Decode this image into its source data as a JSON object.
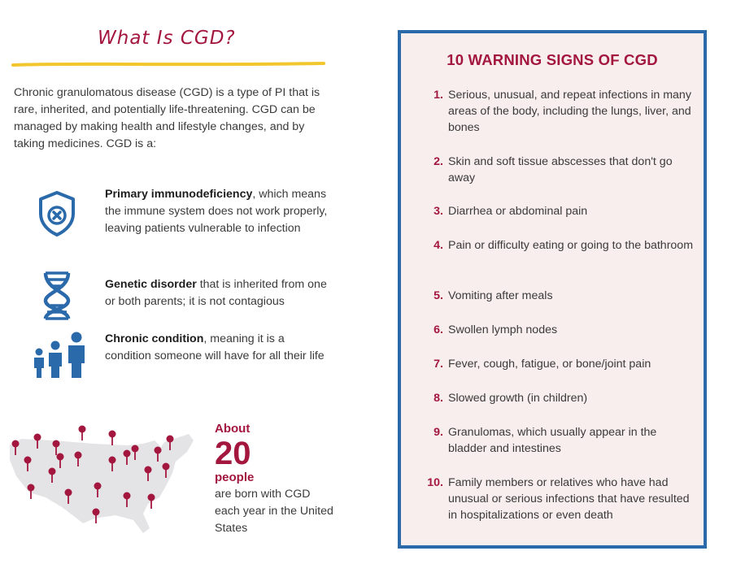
{
  "left": {
    "title": "What Is CGD?",
    "intro": "Chronic granulomatous disease (CGD) is a type of PI that is rare, inherited, and potentially life-threatening. CGD can be managed by making health and lifestyle changes, and by taking medicines. CGD is a:",
    "facts": [
      {
        "bold": "Primary immunodeficiency",
        "rest": ", which means the immune system does not work properly, leaving patients vulnerable to infection",
        "icon": "shield-x-icon"
      },
      {
        "bold": "Genetic disorder",
        "rest": " that is inherited from one or both parents; it is not contagious",
        "icon": "dna-icon"
      },
      {
        "bold": "Chronic condition",
        "rest": ", meaning it is a condition someone will have for all their life",
        "icon": "family-icon"
      }
    ],
    "stat": {
      "about": "About",
      "number": "20",
      "people": "people",
      "description": "are born with CGD each year in the United States"
    }
  },
  "panel": {
    "title": "10 WARNING SIGNS OF CGD",
    "signs": [
      {
        "n": "1.",
        "text": "Serious, unusual, and repeat infections in many areas of the body, including the lungs, liver, and bones"
      },
      {
        "n": "2.",
        "text": "Skin and soft tissue abscesses that don't go away"
      },
      {
        "n": "3.",
        "text": "Diarrhea or abdominal pain"
      },
      {
        "n": "4.",
        "text": "Pain or difficulty eating or going to the bathroom"
      },
      {
        "n": "5.",
        "text": "Vomiting after meals"
      },
      {
        "n": "6.",
        "text": "Swollen lymph nodes"
      },
      {
        "n": "7.",
        "text": "Fever, cough, fatigue, or bone/joint pain"
      },
      {
        "n": "8.",
        "text": "Slowed growth (in children)"
      },
      {
        "n": "9.",
        "text": "Granulomas, which usually appear in the bladder and intestines"
      },
      {
        "n": "10.",
        "text": "Family members or relatives who have had unusual or serious infections that have resulted in hospitalizations or even death"
      }
    ]
  },
  "colors": {
    "accent": "#a3173f",
    "blue": "#2a6aab",
    "yellow": "#f2c62d",
    "panel_bg": "#f8eeed",
    "map": "#e4e4e6"
  }
}
